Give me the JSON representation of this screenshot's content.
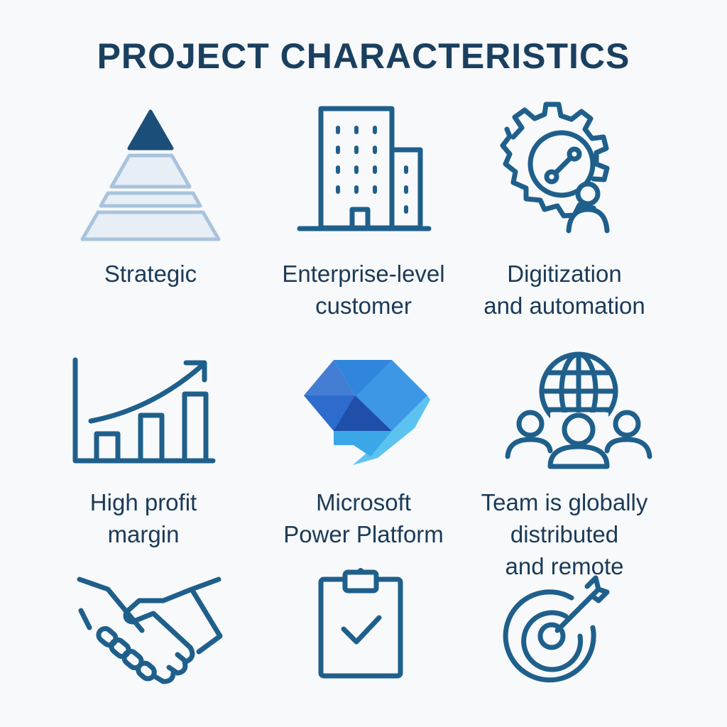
{
  "title": "PROJECT CHARACTERISTICS",
  "colors": {
    "icon_stroke": "#1f5f8b",
    "title_text": "#1a3f5f",
    "pyramid_top": "#1b4f7a",
    "pyramid_light": "#a9c3dd",
    "power_dark": "#1f4fa8",
    "power_mid": "#2f86dc",
    "power_light": "#5cc3f0",
    "background": "#f7f9fb"
  },
  "items": [
    {
      "icon": "pyramid-icon",
      "label_lines": [
        "Strategic"
      ]
    },
    {
      "icon": "office-buildings-icon",
      "label_lines": [
        "Enterprise-level",
        "customer"
      ]
    },
    {
      "icon": "gear-person-icon",
      "label_lines": [
        "Digitization",
        "and automation"
      ]
    },
    {
      "icon": "growth-bar-chart-icon",
      "label_lines": [
        "High profit",
        "margin"
      ]
    },
    {
      "icon": "power-automate-logo-icon",
      "label_lines": [
        "Microsoft",
        "Power Platform"
      ]
    },
    {
      "icon": "globe-team-icon",
      "label_lines": [
        "Team is globally",
        "distributed",
        "and remote"
      ]
    },
    {
      "icon": "handshake-icon",
      "label_lines": []
    },
    {
      "icon": "clipboard-check-icon",
      "label_lines": []
    },
    {
      "icon": "target-arrow-icon",
      "label_lines": []
    }
  ]
}
